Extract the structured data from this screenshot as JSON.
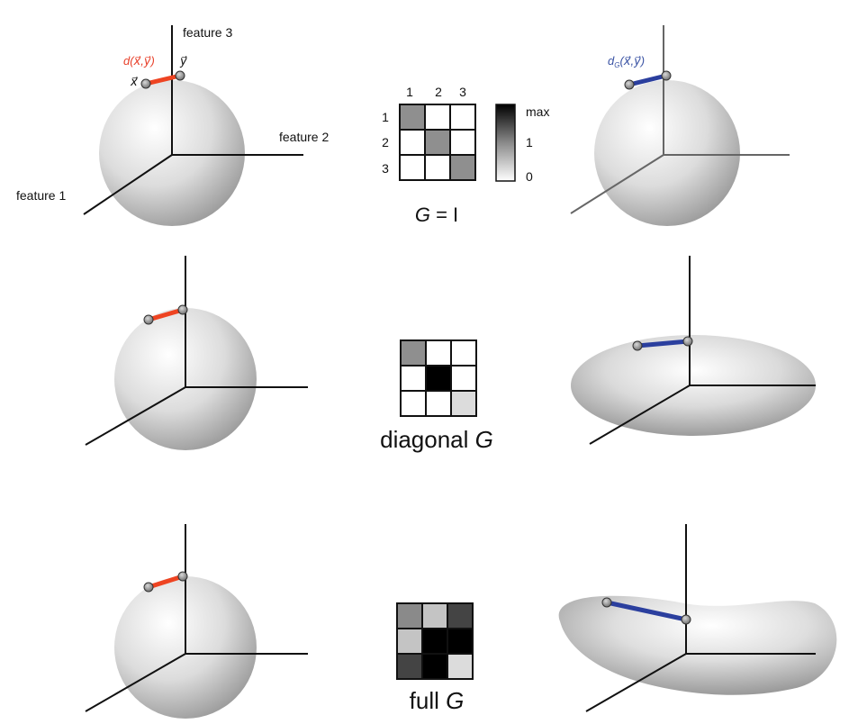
{
  "labels": {
    "feature_1": "feature 1",
    "feature_2": "feature 2",
    "feature_3": "feature 3",
    "x_vec": "x⃗",
    "y_vec": "y⃗",
    "d_label": "d(x⃗,y⃗)",
    "dg_label": "d",
    "dg_sub": "G",
    "dg_rest": "(x⃗,y⃗)"
  },
  "matrix_indices": {
    "cols": [
      "1",
      "2",
      "3"
    ],
    "rows": [
      "1",
      "2",
      "3"
    ]
  },
  "colorbar": {
    "max": "max",
    "mid": "1",
    "min": "0"
  },
  "rows": [
    {
      "caption_pre": "",
      "caption_g": "G",
      "caption_post": " = I",
      "matrix": [
        [
          "#8f8f8f",
          "#ffffff",
          "#ffffff"
        ],
        [
          "#ffffff",
          "#8f8f8f",
          "#ffffff"
        ],
        [
          "#ffffff",
          "#ffffff",
          "#8f8f8f"
        ]
      ]
    },
    {
      "caption_pre": "diagonal ",
      "caption_g": "G",
      "caption_post": "",
      "matrix": [
        [
          "#8f8f8f",
          "#ffffff",
          "#ffffff"
        ],
        [
          "#ffffff",
          "#000000",
          "#ffffff"
        ],
        [
          "#ffffff",
          "#ffffff",
          "#dcdcdc"
        ]
      ]
    },
    {
      "caption_pre": "full ",
      "caption_g": "G",
      "caption_post": "",
      "matrix": [
        [
          "#8a8a8a",
          "#c4c4c4",
          "#444444"
        ],
        [
          "#c4c4c4",
          "#000000",
          "#000000"
        ],
        [
          "#444444",
          "#000000",
          "#dcdcdc"
        ]
      ]
    }
  ],
  "colors": {
    "euclid_segment": "#ee4422",
    "metric_segment": "#2b3f9e",
    "d_label": "#e8402a",
    "dg_label": "#3a53a4"
  }
}
